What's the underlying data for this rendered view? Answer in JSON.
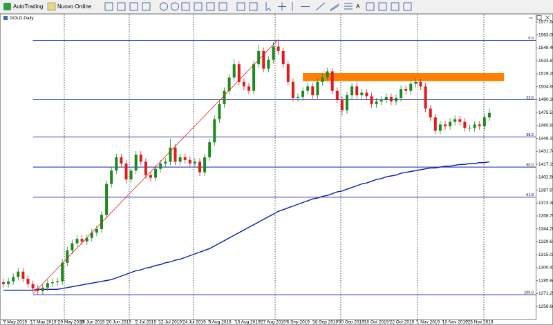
{
  "toolbar": {
    "auto_trading": "AutoTrading",
    "new_order": "Nuovo Ordine"
  },
  "chart_data": {
    "type": "candlestick",
    "title": "GOLD,Daily",
    "up_color": "#1c8a1c",
    "down_color": "#e31a1c",
    "open": [
      1284,
      1282,
      1285,
      1290,
      1296,
      1288,
      1282,
      1277,
      1274,
      1278,
      1283,
      1284,
      1285,
      1306,
      1320,
      1328,
      1333,
      1330,
      1334,
      1340,
      1344,
      1360,
      1395,
      1410,
      1425,
      1418,
      1400,
      1410,
      1428,
      1420,
      1405,
      1402,
      1412,
      1418,
      1420,
      1436,
      1420,
      1425,
      1422,
      1418,
      1420,
      1408,
      1425,
      1442,
      1468,
      1485,
      1500,
      1515,
      1530,
      1510,
      1505,
      1500,
      1530,
      1545,
      1525,
      1535,
      1550,
      1545,
      1530,
      1510,
      1492,
      1493,
      1500,
      1505,
      1495,
      1510,
      1515,
      1522,
      1500,
      1490,
      1478,
      1495,
      1505,
      1495,
      1498,
      1494,
      1485,
      1488,
      1490,
      1493,
      1488,
      1492,
      1502,
      1500,
      1508,
      1510,
      1505,
      1480,
      1470,
      1455,
      1462,
      1460,
      1465,
      1468,
      1465,
      1458,
      1458,
      1462,
      1460,
      1470
    ],
    "high": [
      1288,
      1289,
      1294,
      1300,
      1300,
      1292,
      1286,
      1281,
      1282,
      1287,
      1288,
      1289,
      1310,
      1324,
      1332,
      1337,
      1337,
      1338,
      1344,
      1348,
      1364,
      1399,
      1414,
      1429,
      1429,
      1422,
      1414,
      1432,
      1432,
      1424,
      1409,
      1416,
      1422,
      1424,
      1446,
      1440,
      1429,
      1429,
      1426,
      1424,
      1424,
      1429,
      1446,
      1472,
      1489,
      1504,
      1519,
      1536,
      1534,
      1514,
      1509,
      1534,
      1552,
      1549,
      1539,
      1555,
      1557,
      1549,
      1534,
      1514,
      1497,
      1504,
      1509,
      1509,
      1514,
      1519,
      1526,
      1526,
      1504,
      1494,
      1499,
      1509,
      1509,
      1502,
      1502,
      1498,
      1492,
      1494,
      1497,
      1497,
      1496,
      1506,
      1506,
      1512,
      1514,
      1514,
      1509,
      1484,
      1474,
      1466,
      1466,
      1469,
      1472,
      1472,
      1469,
      1462,
      1466,
      1466,
      1474,
      1480
    ],
    "low": [
      1278,
      1278,
      1281,
      1286,
      1284,
      1278,
      1273,
      1270,
      1270,
      1274,
      1279,
      1280,
      1281,
      1302,
      1316,
      1324,
      1326,
      1326,
      1330,
      1336,
      1340,
      1356,
      1391,
      1406,
      1414,
      1396,
      1396,
      1406,
      1416,
      1401,
      1398,
      1398,
      1408,
      1414,
      1416,
      1416,
      1416,
      1418,
      1414,
      1414,
      1404,
      1404,
      1421,
      1438,
      1464,
      1481,
      1496,
      1511,
      1506,
      1501,
      1496,
      1496,
      1526,
      1521,
      1521,
      1531,
      1541,
      1526,
      1506,
      1488,
      1488,
      1489,
      1496,
      1491,
      1491,
      1506,
      1511,
      1496,
      1486,
      1472,
      1474,
      1491,
      1491,
      1491,
      1490,
      1481,
      1481,
      1484,
      1486,
      1484,
      1484,
      1488,
      1496,
      1496,
      1504,
      1501,
      1476,
      1466,
      1451,
      1451,
      1456,
      1456,
      1461,
      1461,
      1454,
      1454,
      1454,
      1456,
      1456,
      1466
    ],
    "close": [
      1282,
      1285,
      1290,
      1296,
      1288,
      1282,
      1277,
      1274,
      1278,
      1283,
      1284,
      1285,
      1306,
      1320,
      1328,
      1333,
      1330,
      1334,
      1340,
      1344,
      1360,
      1395,
      1410,
      1425,
      1418,
      1400,
      1410,
      1428,
      1420,
      1405,
      1402,
      1412,
      1418,
      1420,
      1436,
      1420,
      1425,
      1422,
      1418,
      1420,
      1408,
      1425,
      1442,
      1468,
      1485,
      1500,
      1515,
      1530,
      1510,
      1505,
      1500,
      1530,
      1545,
      1525,
      1535,
      1550,
      1545,
      1530,
      1510,
      1492,
      1493,
      1500,
      1505,
      1495,
      1510,
      1515,
      1522,
      1500,
      1490,
      1478,
      1495,
      1505,
      1495,
      1498,
      1494,
      1485,
      1488,
      1490,
      1493,
      1488,
      1492,
      1502,
      1500,
      1508,
      1510,
      1505,
      1480,
      1470,
      1455,
      1462,
      1460,
      1465,
      1468,
      1465,
      1458,
      1458,
      1462,
      1460,
      1470,
      1475
    ],
    "moving_average": {
      "color": "#0a1ab8",
      "values": [
        1275,
        1275,
        1275,
        1275,
        1275,
        1275,
        1275,
        1276,
        1276,
        1276,
        1276,
        1276,
        1277,
        1278,
        1279,
        1280,
        1281,
        1282,
        1283,
        1284,
        1285,
        1286,
        1287,
        1289,
        1291,
        1293,
        1295,
        1297,
        1298,
        1300,
        1301,
        1303,
        1304,
        1306,
        1307,
        1309,
        1310,
        1312,
        1314,
        1316,
        1318,
        1320,
        1322,
        1325,
        1328,
        1331,
        1334,
        1337,
        1340,
        1343,
        1346,
        1349,
        1352,
        1355,
        1358,
        1361,
        1364,
        1366,
        1368,
        1370,
        1372,
        1374,
        1376,
        1378,
        1379,
        1381,
        1382,
        1384,
        1386,
        1387,
        1389,
        1391,
        1393,
        1395,
        1396,
        1398,
        1400,
        1401,
        1403,
        1404,
        1405,
        1407,
        1408,
        1409,
        1410,
        1411,
        1412,
        1413,
        1413,
        1414,
        1415,
        1415,
        1416,
        1417,
        1417,
        1418,
        1418,
        1419,
        1419,
        1420
      ]
    },
    "fibonacci": {
      "color": "#0a1ab8",
      "levels": [
        {
          "label": "0.0",
          "value": 1557
        },
        {
          "label": "23.6",
          "value": 1490
        },
        {
          "label": "38.2",
          "value": 1448
        },
        {
          "label": "50.0",
          "value": 1414
        },
        {
          "label": "61.8",
          "value": 1380
        },
        {
          "label": "100.0",
          "value": 1270
        }
      ]
    },
    "trendline": {
      "color": "#e31a1c",
      "start_index": 6,
      "start_price": 1271,
      "end_index": 56,
      "end_price": 1558
    },
    "zone": {
      "color": "#ff8000",
      "start": 61,
      "end": 102,
      "low": 1511,
      "high": 1520
    },
    "ylim": [
      1242,
      1585.4
    ],
    "yticks": [
      {
        "value": 1577.64,
        "label": "1577.64"
      },
      {
        "value": 1563.05,
        "label": "1563.05"
      },
      {
        "value": 1548.46,
        "label": "1548.46"
      },
      {
        "value": 1533.87,
        "label": "1533.87"
      },
      {
        "value": 1519.28,
        "label": "1519.28"
      },
      {
        "value": 1504.69,
        "label": "1504.69"
      },
      {
        "value": 1490.1,
        "label": "1490.10"
      },
      {
        "value": 1475.51,
        "label": "1475.51"
      },
      {
        "value": 1460.92,
        "label": "1460.92"
      },
      {
        "value": 1446.33,
        "label": "1446.33"
      },
      {
        "value": 1431.74,
        "label": "1431.74"
      },
      {
        "value": 1417.15,
        "label": "1417.15"
      },
      {
        "value": 1402.56,
        "label": "1402.56"
      },
      {
        "value": 1387.97,
        "label": "1387.97"
      },
      {
        "value": 1373.38,
        "label": "1373.38"
      },
      {
        "value": 1358.79,
        "label": "1358.79"
      },
      {
        "value": 1344.2,
        "label": "1344.20"
      },
      {
        "value": 1329.61,
        "label": "1329.61"
      },
      {
        "value": 1315.02,
        "label": "1315.02"
      },
      {
        "value": 1300.43,
        "label": "1300.43"
      },
      {
        "value": 1285.84,
        "label": "1285.84"
      },
      {
        "value": 1271.25,
        "label": "1271.25"
      },
      {
        "value": 1256.66,
        "label": "1256.66"
      }
    ],
    "xticks": [
      {
        "value": 0,
        "label": "7 May 2019"
      },
      {
        "value": 5.5,
        "label": "17 May 2019"
      },
      {
        "value": 11.1,
        "label": "29 May 2019"
      },
      {
        "value": 15.6,
        "label": "10 Jun 2019"
      },
      {
        "value": 21,
        "label": "20 Jun 2019"
      },
      {
        "value": 26.9,
        "label": "2 Jul 2019"
      },
      {
        "value": 31.6,
        "label": "12 Jul 2019"
      },
      {
        "value": 36.5,
        "label": "24 Jul 2019"
      },
      {
        "value": 41.8,
        "label": "5 Aug 2019"
      },
      {
        "value": 47.2,
        "label": "15 Aug 2019"
      },
      {
        "value": 52.4,
        "label": "27 Aug 2019"
      },
      {
        "value": 57.7,
        "label": "6 Sep 2019"
      },
      {
        "value": 63,
        "label": "18 Sep 2019"
      },
      {
        "value": 68.3,
        "label": "30 Sep 2019"
      },
      {
        "value": 73.5,
        "label": "10 Oct 2019"
      },
      {
        "value": 78.7,
        "label": "22 Oct 2019"
      },
      {
        "value": 84.2,
        "label": "1 Nov 2019"
      },
      {
        "value": 89.4,
        "label": "13 Nov 2019"
      },
      {
        "value": 94.6,
        "label": "25 Nov 2019"
      }
    ]
  }
}
